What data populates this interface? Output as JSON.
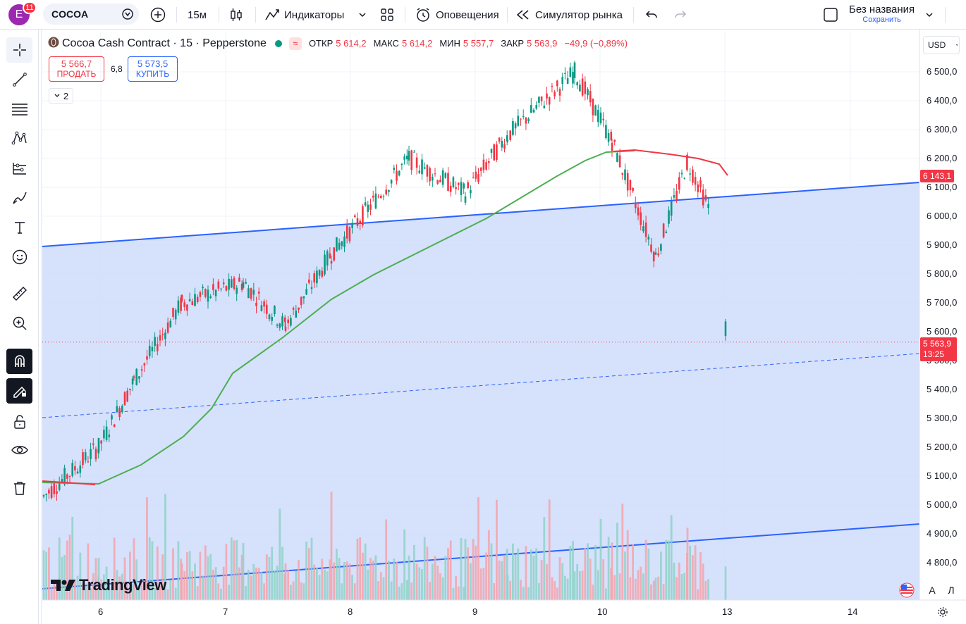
{
  "header": {
    "avatar_letter": "E",
    "notifications": "11",
    "symbol": "COCOA",
    "interval": "15м",
    "indicators_label": "Индикаторы",
    "alerts_label": "Оповещения",
    "simulator_label": "Симулятор рынка",
    "layout_name": "Без названия",
    "save_label": "Сохранить"
  },
  "legend": {
    "title": "Cocoa Cash Contract · 15 · Pepperstone",
    "approx_glyph": "≈",
    "open_label": "ОТКР",
    "open_value": "5 614,2",
    "high_label": "МАКС",
    "high_value": "5 614,2",
    "low_label": "МИН",
    "low_value": "5 557,7",
    "close_label": "ЗАКР",
    "close_value": "5 563,9",
    "change_value": "−49,9 (−0,89%)"
  },
  "trade": {
    "sell_price": "5 566,7",
    "sell_label": "ПРОДАТЬ",
    "spread": "6,8",
    "buy_price": "5 573,5",
    "buy_label": "КУПИТЬ",
    "collapsed_count": "2"
  },
  "currency": "USD",
  "y_axis_labels": [
    "6 500,0",
    "6 400,0",
    "6 300,0",
    "6 200,0",
    "6 100,0",
    "6 000,0",
    "5 900,0",
    "5 800,0",
    "5 700,0",
    "5 600,0",
    "5 500,0",
    "5 400,0",
    "5 300,0",
    "5 200,0",
    "5 100,0",
    "5 000,0",
    "4 900,0",
    "4 800,0"
  ],
  "x_axis_labels": [
    "6",
    "7",
    "8",
    "9",
    "10",
    "13",
    "14"
  ],
  "price_tags": {
    "ma_value": "6 143,1",
    "last_price": "5 563,9",
    "countdown": "13:25"
  },
  "branding": "TradingView",
  "scale_buttons": {
    "auto": "A",
    "log": "Л"
  },
  "colors": {
    "up": "#089981",
    "down": "#f23645",
    "channel": "#2962ff",
    "channel_fill": "#cfdcfb",
    "ma_green": "#4caf50",
    "ma_red": "#f23645"
  },
  "chart_data": {
    "type": "candlestick",
    "x_ticks": [
      "6",
      "7",
      "8",
      "9",
      "10",
      "13",
      "14"
    ],
    "y_range": [
      4750,
      6560
    ],
    "last_price": 5563.9,
    "ma_last": 6143.1,
    "key_path": [
      {
        "x": "5",
        "price": 5030
      },
      {
        "x": "6",
        "price": 5200
      },
      {
        "x": "6",
        "price": 5430
      },
      {
        "x": "6",
        "price": 5700
      },
      {
        "x": "7",
        "price": 5770
      },
      {
        "x": "7",
        "price": 5620
      },
      {
        "x": "8",
        "price": 5870
      },
      {
        "x": "8",
        "price": 6200
      },
      {
        "x": "9",
        "price": 6080
      },
      {
        "x": "9",
        "price": 6280
      },
      {
        "x": "10",
        "price": 6500
      },
      {
        "x": "10",
        "price": 6260
      },
      {
        "x": "10",
        "price": 5860
      },
      {
        "x": "10",
        "price": 6190
      },
      {
        "x": "10",
        "price": 6030
      },
      {
        "x": "13",
        "price": 5614.2
      },
      {
        "x": "13",
        "price": 5563.9
      }
    ]
  }
}
